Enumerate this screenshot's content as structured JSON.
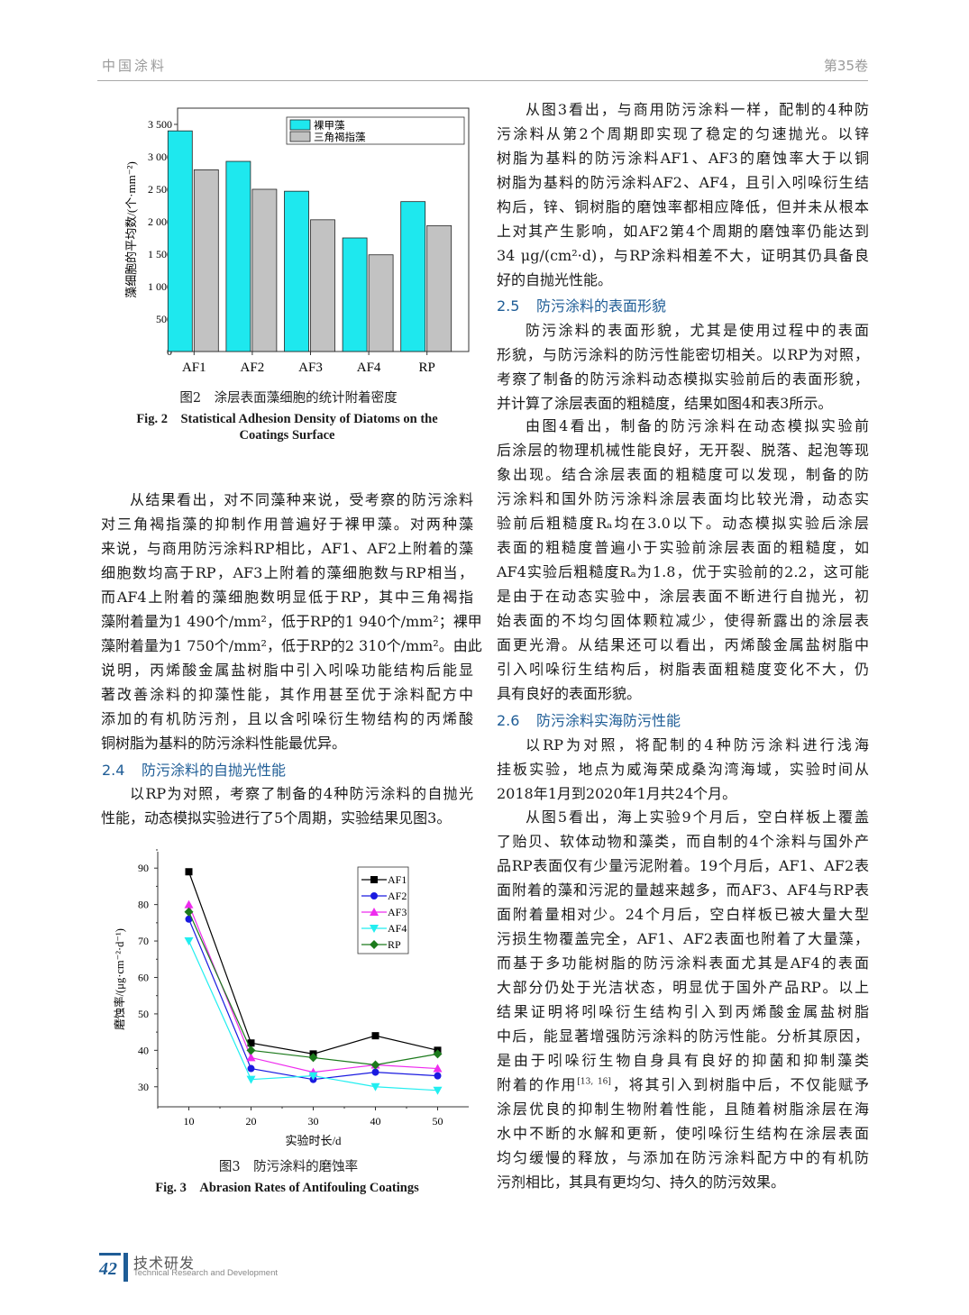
{
  "header": {
    "journal": "中国涂料",
    "volume": "第35卷"
  },
  "footer": {
    "page_number": "42",
    "section_cn": "技术研发",
    "section_en": "Technical Research and Development"
  },
  "figure2": {
    "caption_cn": "图2　涂层表面藻细胞的统计附着密度",
    "caption_en_1": "Fig. 2　Statistical Adhesion Density of Diatoms on the",
    "caption_en_2": "Coatings Surface"
  },
  "figure3": {
    "caption_cn": "图3　防污涂料的磨蚀率",
    "caption_en": "Fig. 3　Abrasion Rates of Antifouling Coatings"
  },
  "chart_data": [
    {
      "type": "bar",
      "title": "",
      "xlabel": "",
      "ylabel": "藻细胞的平均数/(个·mm⁻²)",
      "categories": [
        "AF1",
        "AF2",
        "AF3",
        "AF4",
        "RP"
      ],
      "series": [
        {
          "name": "裸甲藻",
          "values": [
            3400,
            2930,
            2470,
            1750,
            2310
          ],
          "color": "#1ee8ee"
        },
        {
          "name": "三角褐指藻",
          "values": [
            2800,
            2500,
            2030,
            1490,
            1940
          ],
          "color": "#c2c2c2"
        }
      ],
      "ylim": [
        0,
        3750
      ],
      "yticks": [
        0,
        500,
        1000,
        1500,
        2000,
        2500,
        3000,
        3500
      ],
      "ytick_labels": [
        "0",
        "500",
        "1 000",
        "1 500",
        "2 000",
        "2 500",
        "3 000",
        "3 500"
      ],
      "grid": false,
      "legend": "top-right"
    },
    {
      "type": "line",
      "title": "",
      "xlabel": "实验时长/d",
      "ylabel": "磨蚀率/(μg·cm⁻²·d⁻¹)",
      "x": [
        10,
        20,
        30,
        40,
        50
      ],
      "series": [
        {
          "name": "AF1",
          "values": [
            89,
            42,
            39,
            44,
            40
          ],
          "color": "#000000",
          "marker": "square"
        },
        {
          "name": "AF2",
          "values": [
            76,
            35,
            32,
            34,
            33
          ],
          "color": "#1a1ae0",
          "marker": "circle"
        },
        {
          "name": "AF3",
          "values": [
            80,
            38,
            34,
            36,
            35
          ],
          "color": "#ee2cee",
          "marker": "triangle-up"
        },
        {
          "name": "AF4",
          "values": [
            70,
            32,
            33,
            30,
            29
          ],
          "color": "#22eef0",
          "marker": "triangle-down"
        },
        {
          "name": "RP",
          "values": [
            78,
            40,
            38,
            36,
            39
          ],
          "color": "#1c7a1c",
          "marker": "diamond"
        }
      ],
      "xlim": [
        5,
        55
      ],
      "ylim": [
        24.5,
        94.5
      ],
      "xticks": [
        10,
        20,
        30,
        40,
        50
      ],
      "yticks": [
        30,
        40,
        50,
        60,
        70,
        80,
        90
      ],
      "grid": false,
      "legend": "top-right"
    }
  ],
  "left": {
    "para1": [
      "从结果看出，对不同藻种来说，受考察的防污涂料",
      "对三角褐指藻的抑制作用普遍好于裸甲藻。对两种藻",
      "来说，与商用防污涂料RP相比，AF1、AF2上附着的藻",
      "细胞数均高于RP，AF3上附着的藻细胞数与RP相当，",
      "而AF4上附着的藻细胞数明显低于RP，其中三角褐指",
      "藻附着量为1 490个/mm²，低于RP的1 940个/mm²；裸甲",
      "藻附着量为1 750个/mm²，低于RP的2 310个/mm²。由此",
      "说明，丙烯酸金属盐树脂中引入吲哚功能结构后能显",
      "著改善涂料的抑藻性能，其作用甚至优于涂料配方中",
      "添加的有机防污剂，且以含吲哚衍生物结构的丙烯酸",
      "铜树脂为基料的防污涂料性能最优异。"
    ],
    "sec24_num": "2.4",
    "sec24_title": "防污涂料的自抛光性能",
    "para2": [
      "以RP为对照，考察了制备的4种防污涂料的自抛光",
      "性能，动态模拟实验进行了5个周期，实验结果见图3。"
    ]
  },
  "right": {
    "para1": [
      "从图3看出，与商用防污涂料一样，配制的4种防",
      "污涂料从第2个周期即实现了稳定的匀速抛光。以锌",
      "树脂为基料的防污涂料AF1、AF3的磨蚀率大于以铜",
      "树脂为基料的防污涂料AF2、AF4，且引入吲哚衍生结",
      "构后，锌、铜树脂的磨蚀率都相应降低，但并未从根本",
      "上对其产生影响，如AF2第4个周期的磨蚀率仍能达到",
      "34 μg/(cm²·d)，与RP涂料相差不大，证明其仍具备良",
      "好的自抛光性能。"
    ],
    "sec25_num": "2.5",
    "sec25_title": "防污涂料的表面形貌",
    "para2": [
      "防污涂料的表面形貌，尤其是使用过程中的表面",
      "形貌，与防污涂料的防污性能密切相关。以RP为对照，",
      "考察了制备的防污涂料动态模拟实验前后的表面形貌，",
      "并计算了涂层表面的粗糙度，结果如图4和表3所示。"
    ],
    "para3": [
      "由图4看出，制备的防污涂料在动态模拟实验前",
      "后涂层的物理机械性能良好，无开裂、脱落、起泡等现",
      "象出现。结合涂层表面的粗糙度可以发现，制备的防",
      "污涂料和国外防污涂料涂层表面均比较光滑，动态实",
      "验前后粗糙度Rₐ均在3.0以下。动态模拟实验后涂层",
      "表面的粗糙度普遍小于实验前涂层表面的粗糙度，如",
      "AF4实验后粗糙度Rₐ为1.8，优于实验前的2.2，这可能",
      "是由于在动态实验中，涂层表面不断进行自抛光，初",
      "始表面的不均匀固体颗粒减少，使得新露出的涂层表",
      "面更光滑。从结果还可以看出，丙烯酸金属盐树脂中",
      "引入吲哚衍生结构后，树脂表面粗糙度变化不大，仍",
      "具有良好的表面形貌。"
    ],
    "sec26_num": "2.6",
    "sec26_title": "防污涂料实海防污性能",
    "para4": [
      "以RP为对照，将配制的4种防污涂料进行浅海",
      "挂板实验，地点为威海荣成桑沟湾海域，实验时间从",
      "2018年1月到2020年1月共24个月。"
    ],
    "para5": [
      "从图5看出，海上实验9个月后，空白样板上覆盖",
      "了贻贝、软体动物和藻类，而自制的4个涂料与国外产",
      "品RP表面仅有少量污泥附着。19个月后，AF1、AF2表",
      "面附着的藻和污泥的量越来越多，而AF3、AF4与RP表",
      "面附着量相对少。24个月后，空白样板已被大量大型",
      "污损生物覆盖完全，AF1、AF2表面也附着了大量藻，",
      "而基于多功能树脂的防污涂料表面尤其是AF4的表面",
      "大部分仍处于光洁状态，明显优于国外产品RP。以上",
      "结果证明将吲哚衍生结构引入到丙烯酸金属盐树脂",
      "中后，能显著增强防污涂料的防污性能。分析其原因，",
      "是由于吲哚衍生物自身具有良好的抑菌和抑制藻类",
      {
        "pre": "附着的作用",
        "sup": "[13, 16]",
        "post": "，将其引入到树脂中后，不仅能赋予"
      },
      "涂层优良的抑制生物附着性能，且随着树脂涂层在海",
      "水中不断的水解和更新，使吲哚衍生结构在涂层表面",
      "均匀缓慢的释放，与添加在防污涂料配方中的有机防",
      "污剂相比，其具有更均匀、持久的防污效果。"
    ]
  }
}
